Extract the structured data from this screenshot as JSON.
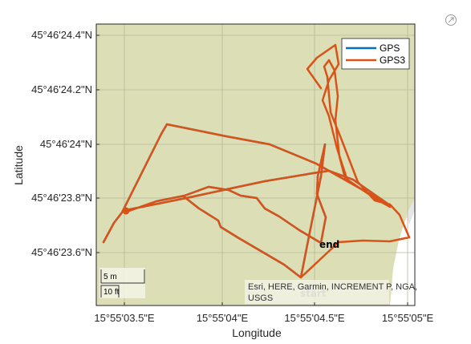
{
  "axes": {
    "xlabel": "Longitude",
    "ylabel": "Latitude",
    "x_ticks": [
      "15°55'03.5\"E",
      "15°55'04\"E",
      "15°55'04.5\"E",
      "15°55'05\"E"
    ],
    "y_ticks": [
      "45°46'24.4\"N",
      "45°46'24.2\"N",
      "45°46'24\"N",
      "45°46'23.8\"N",
      "45°46'23.6\"N"
    ]
  },
  "legend": {
    "placement": "top-right",
    "items": [
      {
        "label": "GPS",
        "color": "#0072BD"
      },
      {
        "label": "GPS3",
        "color": "#D95319"
      }
    ]
  },
  "scalebar": {
    "metric": "5 m",
    "imperial": "10 ft"
  },
  "attribution": {
    "line1": "Esri, HERE, Garmin, INCREMENT P, NGA,",
    "line2": "USGS"
  },
  "annotations": {
    "end": "end",
    "start": "start"
  },
  "colors": {
    "basemap": "#DCDFB6",
    "grid": "#B5B89A",
    "gps": "#0072BD",
    "gps3": "#D95319"
  },
  "toolbar": {
    "icon": "export-icon"
  }
}
